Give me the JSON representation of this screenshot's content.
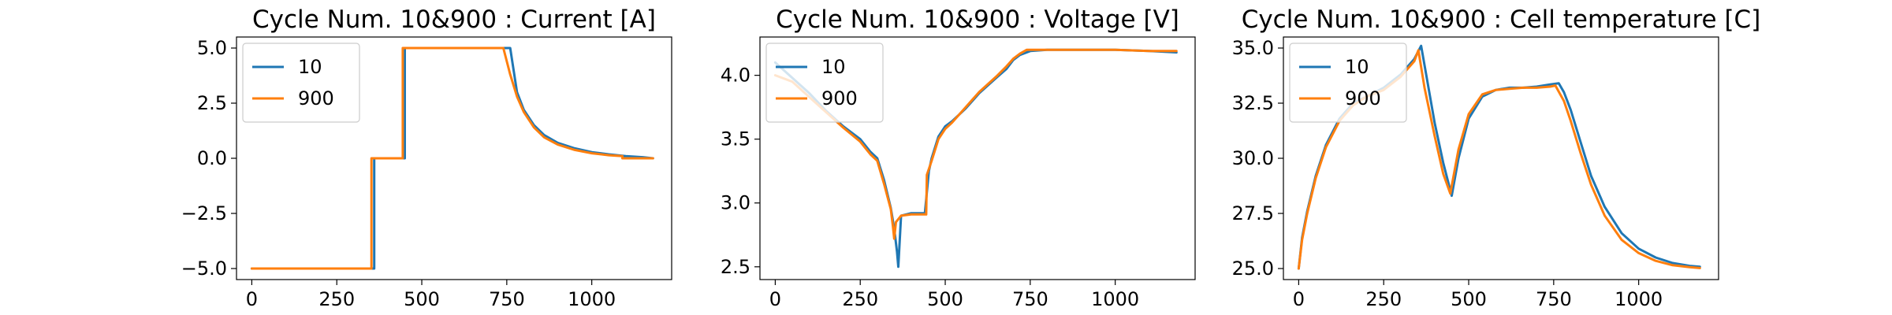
{
  "chart_data": [
    {
      "type": "line",
      "title": "Cycle Num. 10&900 : Current [A]",
      "xlabel": "",
      "ylabel": "",
      "xlim": [
        -45,
        1235
      ],
      "ylim": [
        -5.5,
        5.5
      ],
      "x_ticks": [
        0,
        250,
        500,
        750,
        1000
      ],
      "x_tick_labels": [
        "0",
        "250",
        "500",
        "750",
        "1000"
      ],
      "y_ticks": [
        -5.0,
        -2.5,
        0.0,
        2.5,
        5.0
      ],
      "y_tick_labels": [
        "−5.0",
        "−2.5",
        "0.0",
        "2.5",
        "5.0"
      ],
      "legend": "top-left",
      "grid": false,
      "series": [
        {
          "name": "10",
          "color": "#1f77b4",
          "x": [
            0,
            360,
            360,
            450,
            450,
            760,
            780,
            800,
            830,
            860,
            900,
            950,
            1000,
            1050,
            1100,
            1150,
            1180
          ],
          "y": [
            -5,
            -5,
            0,
            0,
            5,
            5,
            3.0,
            2.2,
            1.5,
            1.05,
            0.7,
            0.45,
            0.28,
            0.18,
            0.1,
            0.05,
            0.0
          ]
        },
        {
          "name": "900",
          "color": "#ff7f0e",
          "x": [
            0,
            352,
            352,
            444,
            444,
            740,
            760,
            780,
            800,
            830,
            860,
            900,
            950,
            1000,
            1050,
            1090,
            1090,
            1180
          ],
          "y": [
            -5,
            -5,
            0,
            0,
            5,
            5,
            3.8,
            2.8,
            2.1,
            1.4,
            0.95,
            0.62,
            0.38,
            0.23,
            0.14,
            0.1,
            0.0,
            0.0
          ]
        }
      ]
    },
    {
      "type": "line",
      "title": "Cycle Num. 10&900 : Voltage [V]",
      "xlabel": "",
      "ylabel": "",
      "xlim": [
        -45,
        1235
      ],
      "ylim": [
        2.4,
        4.3
      ],
      "x_ticks": [
        0,
        250,
        500,
        750,
        1000
      ],
      "x_tick_labels": [
        "0",
        "250",
        "500",
        "750",
        "1000"
      ],
      "y_ticks": [
        2.5,
        3.0,
        3.5,
        4.0
      ],
      "y_tick_labels": [
        "2.5",
        "3.0",
        "3.5",
        "4.0"
      ],
      "legend": "top-left",
      "grid": false,
      "series": [
        {
          "name": "10",
          "color": "#1f77b4",
          "x": [
            0,
            50,
            100,
            150,
            200,
            250,
            280,
            300,
            320,
            340,
            350,
            358,
            362,
            370,
            400,
            440,
            452,
            460,
            480,
            500,
            520,
            560,
            600,
            650,
            680,
            700,
            720,
            750,
            800,
            900,
            1000,
            1100,
            1180
          ],
          "y": [
            4.1,
            3.98,
            3.86,
            3.72,
            3.6,
            3.5,
            3.4,
            3.35,
            3.18,
            2.96,
            2.8,
            2.62,
            2.5,
            2.9,
            2.92,
            2.92,
            3.25,
            3.35,
            3.52,
            3.6,
            3.64,
            3.74,
            3.86,
            3.98,
            4.05,
            4.12,
            4.16,
            4.19,
            4.2,
            4.2,
            4.2,
            4.19,
            4.18
          ]
        },
        {
          "name": "900",
          "color": "#ff7f0e",
          "x": [
            0,
            50,
            100,
            150,
            200,
            250,
            280,
            300,
            320,
            340,
            346,
            350,
            355,
            370,
            400,
            444,
            446,
            460,
            480,
            500,
            520,
            560,
            600,
            650,
            680,
            700,
            720,
            740,
            800,
            900,
            1000,
            1100,
            1180
          ],
          "y": [
            4.0,
            3.95,
            3.83,
            3.71,
            3.59,
            3.48,
            3.38,
            3.33,
            3.15,
            2.95,
            2.82,
            2.72,
            2.85,
            2.9,
            2.91,
            2.91,
            3.22,
            3.33,
            3.5,
            3.58,
            3.63,
            3.75,
            3.87,
            3.99,
            4.07,
            4.13,
            4.17,
            4.2,
            4.2,
            4.2,
            4.2,
            4.19,
            4.19
          ]
        }
      ]
    },
    {
      "type": "line",
      "title": "Cycle Num. 10&900 : Cell temperature [C]",
      "xlabel": "",
      "ylabel": "",
      "xlim": [
        -45,
        1235
      ],
      "ylim": [
        24.5,
        35.5
      ],
      "x_ticks": [
        0,
        250,
        500,
        750,
        1000
      ],
      "x_tick_labels": [
        "0",
        "250",
        "500",
        "750",
        "1000"
      ],
      "y_ticks": [
        25.0,
        27.5,
        30.0,
        32.5,
        35.0
      ],
      "y_tick_labels": [
        "25.0",
        "27.5",
        "30.0",
        "32.5",
        "35.0"
      ],
      "legend": "top-left",
      "grid": false,
      "series": [
        {
          "name": "10",
          "color": "#1f77b4",
          "x": [
            0,
            10,
            25,
            50,
            80,
            120,
            160,
            200,
            250,
            300,
            340,
            360,
            375,
            400,
            425,
            450,
            470,
            500,
            540,
            580,
            620,
            660,
            700,
            740,
            765,
            780,
            800,
            830,
            860,
            900,
            950,
            1000,
            1050,
            1100,
            1150,
            1180
          ],
          "y": [
            25.0,
            26.4,
            27.6,
            29.2,
            30.6,
            31.8,
            32.5,
            32.8,
            33.2,
            33.8,
            34.5,
            35.1,
            33.8,
            31.6,
            29.8,
            28.3,
            30.0,
            31.8,
            32.8,
            33.1,
            33.2,
            33.2,
            33.25,
            33.35,
            33.4,
            33.0,
            32.2,
            30.7,
            29.2,
            27.8,
            26.6,
            25.9,
            25.5,
            25.25,
            25.12,
            25.08
          ]
        },
        {
          "name": "900",
          "color": "#ff7f0e",
          "x": [
            0,
            10,
            25,
            50,
            80,
            120,
            160,
            200,
            250,
            300,
            340,
            352,
            370,
            400,
            425,
            446,
            470,
            500,
            540,
            580,
            620,
            660,
            700,
            740,
            755,
            780,
            800,
            830,
            860,
            900,
            950,
            1000,
            1050,
            1100,
            1150,
            1180
          ],
          "y": [
            25.0,
            26.3,
            27.5,
            29.1,
            30.5,
            31.7,
            32.4,
            32.8,
            33.1,
            33.7,
            34.4,
            34.9,
            33.2,
            31.0,
            29.3,
            28.4,
            30.4,
            32.0,
            32.9,
            33.1,
            33.15,
            33.2,
            33.2,
            33.25,
            33.3,
            32.6,
            31.7,
            30.2,
            28.8,
            27.4,
            26.3,
            25.7,
            25.35,
            25.15,
            25.06,
            25.02
          ]
        }
      ]
    }
  ]
}
